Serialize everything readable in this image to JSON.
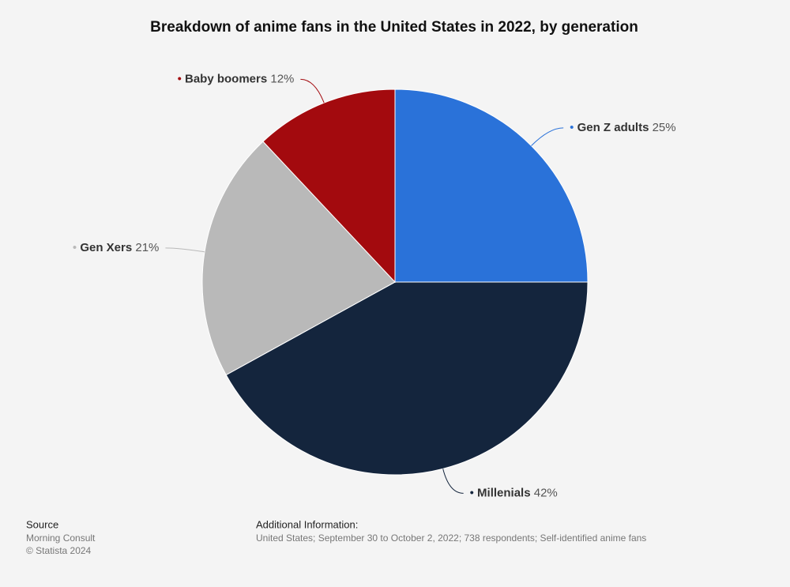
{
  "chart_data": {
    "type": "pie",
    "title": "Breakdown of anime fans in the United States in 2022, by generation",
    "categories": [
      "Gen Z adults",
      "Millenials",
      "Gen Xers",
      "Baby boomers"
    ],
    "values": [
      25,
      42,
      21,
      12
    ],
    "value_labels": [
      "25%",
      "42%",
      "21%",
      "12%"
    ],
    "colors": [
      "#2a72d9",
      "#14253d",
      "#b9b9b9",
      "#a30a0e"
    ],
    "source_heading": "Source",
    "source": "Morning Consult",
    "copyright": "© Statista 2024",
    "additional_info_heading": "Additional Information:",
    "additional_info": "United States; September 30 to October 2, 2022; 738 respondents; Self-identified anime fans"
  }
}
